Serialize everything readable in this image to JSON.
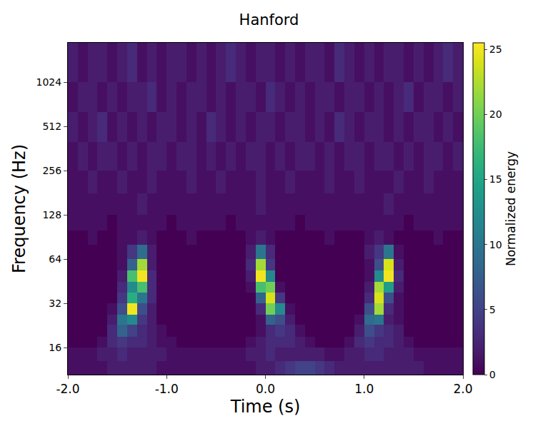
{
  "chart_data": {
    "type": "heatmap",
    "title": "Hanford",
    "x_label": "Time (s)",
    "y_label": "Frequency (Hz)",
    "colorbar_label": "Normalized energy",
    "log": "y",
    "grid": false,
    "xlim": [
      -2,
      2
    ],
    "ylim": [
      10.5,
      1900
    ],
    "xticks": [
      {
        "value": -2,
        "label": "-2.0"
      },
      {
        "value": -1,
        "label": "-1.0"
      },
      {
        "value": 0,
        "label": "0.0"
      },
      {
        "value": 1,
        "label": "1.0"
      },
      {
        "value": 2,
        "label": "2.0"
      }
    ],
    "yticks": [
      16,
      32,
      64,
      128,
      256,
      512,
      1024
    ],
    "colorbar_range": [
      0,
      25.5
    ],
    "colorbar_ticks": [
      0,
      5,
      10,
      15,
      20,
      25
    ],
    "x": [
      -2.0,
      -1.9,
      -1.8,
      -1.7,
      -1.6,
      -1.5,
      -1.4,
      -1.3,
      -1.2,
      -1.1,
      -1.0,
      -0.9,
      -0.8,
      -0.7,
      -0.6,
      -0.5,
      -0.4,
      -0.3,
      -0.2,
      -0.1,
      0.0,
      0.1,
      0.2,
      0.3,
      0.4,
      0.5,
      0.6,
      0.7,
      0.8,
      0.9,
      1.0,
      1.1,
      1.2,
      1.3,
      1.4,
      1.5,
      1.6,
      1.7,
      1.8,
      1.9,
      2.0
    ],
    "y": [
      10.5,
      13,
      16,
      19,
      23,
      27,
      32,
      38,
      45,
      54,
      64,
      80,
      100,
      128,
      180,
      256,
      400,
      640,
      1024,
      1900
    ],
    "cells": [
      [
        1,
        1,
        1,
        1,
        2,
        2,
        2,
        2,
        2,
        1,
        1,
        1,
        1,
        1,
        1,
        1,
        1,
        1,
        1,
        2,
        2,
        3,
        4,
        5,
        5,
        4,
        3,
        2,
        2,
        2,
        2,
        2,
        2,
        2,
        2,
        2,
        1,
        1,
        1,
        1
      ],
      [
        1,
        1,
        1,
        2,
        2,
        3,
        2,
        2,
        2,
        2,
        1,
        1,
        1,
        1,
        1,
        1,
        1,
        1,
        2,
        2,
        3,
        2,
        2,
        2,
        2,
        2,
        1,
        1,
        2,
        2,
        3,
        3,
        2,
        2,
        2,
        1,
        1,
        1,
        1,
        1
      ],
      [
        0,
        0,
        0,
        1,
        3,
        4,
        3,
        3,
        2,
        1,
        1,
        0,
        0,
        0,
        0,
        0,
        0,
        0,
        1,
        2,
        3,
        3,
        3,
        2,
        1,
        0,
        0,
        0,
        1,
        3,
        4,
        3,
        3,
        2,
        1,
        0,
        0,
        0,
        0,
        0
      ],
      [
        0,
        0,
        0,
        0,
        3,
        8,
        5,
        3,
        2,
        1,
        0,
        0,
        0,
        0,
        0,
        0,
        0,
        0,
        0,
        1,
        3,
        4,
        3,
        1,
        0,
        0,
        0,
        0,
        0,
        2,
        6,
        4,
        3,
        2,
        0,
        0,
        0,
        0,
        0,
        0
      ],
      [
        0,
        0,
        0,
        0,
        2,
        10,
        12,
        4,
        2,
        0,
        0,
        0,
        0,
        0,
        0,
        0,
        0,
        0,
        0,
        1,
        8,
        6,
        2,
        0,
        0,
        0,
        0,
        0,
        0,
        1,
        9,
        10,
        2,
        1,
        0,
        0,
        0,
        0,
        0,
        0
      ],
      [
        0,
        0,
        0,
        0,
        1,
        6,
        25,
        6,
        2,
        0,
        0,
        0,
        0,
        0,
        0,
        0,
        0,
        0,
        0,
        3,
        20,
        12,
        1,
        0,
        0,
        0,
        0,
        0,
        0,
        0,
        6,
        22,
        3,
        1,
        0,
        0,
        0,
        0,
        0,
        0
      ],
      [
        0,
        0,
        0,
        0,
        0,
        4,
        16,
        10,
        3,
        0,
        0,
        0,
        0,
        0,
        0,
        0,
        0,
        0,
        0,
        8,
        24,
        4,
        0,
        0,
        0,
        0,
        0,
        0,
        0,
        0,
        3,
        24,
        6,
        1,
        0,
        0,
        0,
        0,
        0,
        0
      ],
      [
        0,
        0,
        0,
        0,
        0,
        3,
        12,
        18,
        3,
        0,
        0,
        0,
        0,
        0,
        0,
        0,
        0,
        0,
        1,
        18,
        20,
        1,
        0,
        0,
        0,
        0,
        0,
        0,
        0,
        0,
        2,
        22,
        14,
        2,
        0,
        0,
        0,
        0,
        0,
        0
      ],
      [
        0,
        0,
        0,
        0,
        0,
        2,
        18,
        25,
        3,
        0,
        0,
        0,
        0,
        0,
        0,
        0,
        0,
        0,
        2,
        25,
        12,
        0,
        0,
        0,
        0,
        0,
        0,
        0,
        0,
        0,
        1,
        12,
        25,
        3,
        0,
        0,
        0,
        0,
        0,
        0
      ],
      [
        0,
        0,
        0,
        0,
        0,
        1,
        8,
        22,
        2,
        0,
        0,
        0,
        0,
        0,
        0,
        0,
        0,
        0,
        3,
        22,
        4,
        0,
        0,
        0,
        0,
        0,
        0,
        0,
        0,
        0,
        1,
        6,
        24,
        2,
        0,
        0,
        0,
        0,
        0,
        0
      ],
      [
        0,
        0,
        0,
        0,
        0,
        1,
        4,
        9,
        2,
        0,
        0,
        0,
        0,
        0,
        0,
        0,
        0,
        0,
        2,
        10,
        3,
        0,
        0,
        0,
        0,
        0,
        0,
        0,
        0,
        0,
        2,
        4,
        10,
        1,
        0,
        0,
        0,
        0,
        0,
        0
      ],
      [
        0,
        0,
        1,
        0,
        0,
        1,
        1,
        2,
        1,
        0,
        0,
        0,
        1,
        0,
        0,
        0,
        0,
        0,
        1,
        2,
        1,
        0,
        0,
        0,
        0,
        0,
        1,
        0,
        0,
        0,
        1,
        2,
        1,
        0,
        0,
        0,
        0,
        1,
        0,
        0
      ],
      [
        1,
        1,
        1,
        1,
        0,
        1,
        1,
        1,
        1,
        1,
        0,
        1,
        1,
        1,
        1,
        1,
        0,
        1,
        1,
        1,
        1,
        1,
        1,
        0,
        1,
        1,
        1,
        1,
        1,
        1,
        1,
        1,
        1,
        1,
        0,
        1,
        1,
        1,
        1,
        1
      ],
      [
        1,
        1,
        1,
        1,
        1,
        1,
        1,
        2,
        1,
        1,
        1,
        1,
        1,
        1,
        1,
        1,
        1,
        1,
        1,
        2,
        1,
        1,
        1,
        1,
        1,
        1,
        1,
        1,
        1,
        1,
        1,
        1,
        2,
        1,
        1,
        1,
        1,
        1,
        1,
        1
      ],
      [
        1,
        1,
        2,
        1,
        1,
        2,
        1,
        1,
        2,
        1,
        1,
        1,
        2,
        1,
        1,
        2,
        1,
        1,
        1,
        2,
        1,
        1,
        2,
        1,
        1,
        1,
        2,
        1,
        1,
        2,
        1,
        1,
        1,
        2,
        1,
        1,
        2,
        1,
        1,
        1
      ],
      [
        1,
        2,
        1,
        2,
        2,
        1,
        2,
        1,
        2,
        2,
        1,
        2,
        2,
        1,
        2,
        1,
        2,
        1,
        2,
        2,
        1,
        2,
        1,
        2,
        2,
        1,
        2,
        1,
        2,
        2,
        1,
        2,
        2,
        1,
        2,
        1,
        2,
        2,
        1,
        2
      ],
      [
        2,
        1,
        2,
        3,
        1,
        2,
        1,
        2,
        1,
        2,
        2,
        1,
        2,
        1,
        3,
        2,
        1,
        2,
        1,
        2,
        2,
        1,
        2,
        2,
        1,
        2,
        1,
        3,
        2,
        1,
        2,
        2,
        1,
        2,
        1,
        2,
        2,
        1,
        2,
        1
      ],
      [
        1,
        2,
        2,
        1,
        2,
        1,
        2,
        2,
        3,
        1,
        2,
        1,
        2,
        2,
        1,
        2,
        1,
        2,
        2,
        1,
        3,
        2,
        1,
        2,
        1,
        2,
        2,
        1,
        2,
        2,
        1,
        2,
        1,
        2,
        3,
        1,
        2,
        2,
        1,
        2
      ],
      [
        2,
        1,
        2,
        2,
        1,
        2,
        3,
        1,
        2,
        1,
        2,
        2,
        1,
        2,
        1,
        2,
        3,
        2,
        1,
        2,
        2,
        1,
        2,
        1,
        2,
        2,
        1,
        3,
        2,
        1,
        2,
        1,
        2,
        2,
        1,
        2,
        1,
        2,
        3,
        2
      ]
    ]
  }
}
